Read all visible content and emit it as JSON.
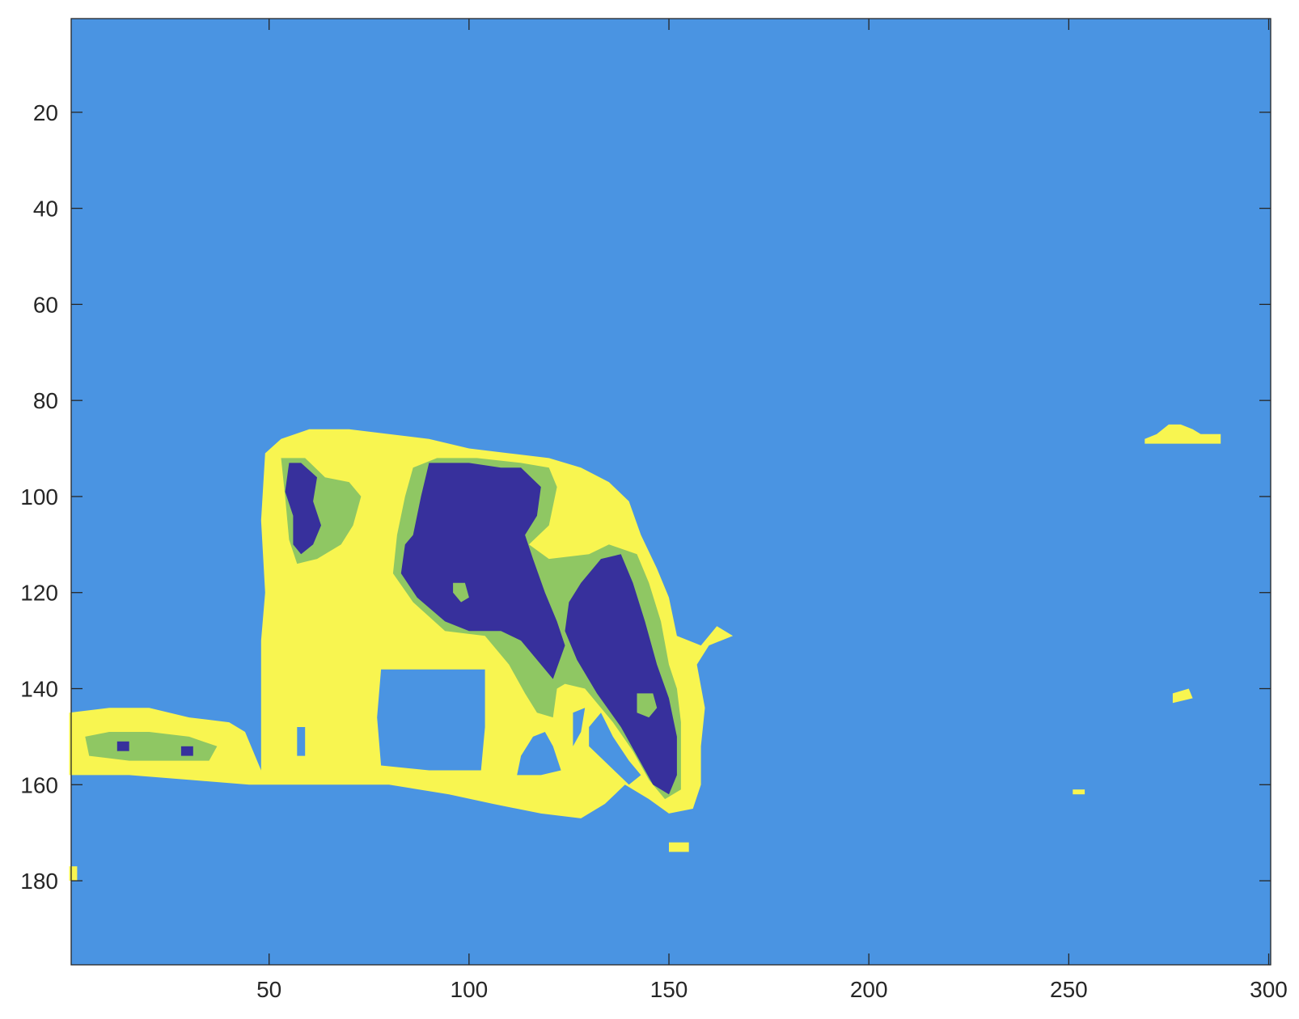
{
  "chart_data": {
    "type": "heatmap",
    "title": "",
    "xlabel": "",
    "ylabel": "",
    "xlim": [
      0.5,
      300.5
    ],
    "ylim": [
      0.5,
      197.5
    ],
    "y_direction": "reversed",
    "x_ticks": [
      50,
      100,
      150,
      200,
      250,
      300
    ],
    "x_tick_labels": [
      "50",
      "100",
      "150",
      "200",
      "250",
      "300"
    ],
    "y_ticks": [
      20,
      40,
      60,
      80,
      100,
      120,
      140,
      160,
      180
    ],
    "y_tick_labels": [
      "20",
      "40",
      "60",
      "80",
      "100",
      "120",
      "140",
      "160",
      "180"
    ],
    "grid": false,
    "legend": "none",
    "colors": {
      "background_class": "#4a94e2",
      "outer_class": "#f8f550",
      "middle_class": "#8fc763",
      "inner_class": "#37309c"
    },
    "regions": [
      {
        "class": "outer_class",
        "polygon": [
          [
            48,
            157
          ],
          [
            48,
            130
          ],
          [
            49,
            120
          ],
          [
            48,
            105
          ],
          [
            49,
            91
          ],
          [
            53,
            88
          ],
          [
            60,
            86
          ],
          [
            70,
            86
          ],
          [
            80,
            87
          ],
          [
            90,
            88
          ],
          [
            100,
            90
          ],
          [
            110,
            91
          ],
          [
            120,
            92
          ],
          [
            128,
            94
          ],
          [
            135,
            97
          ],
          [
            140,
            101
          ],
          [
            143,
            108
          ],
          [
            147,
            115
          ],
          [
            150,
            121
          ],
          [
            152,
            129
          ],
          [
            158,
            131
          ],
          [
            162,
            127
          ],
          [
            166,
            129
          ],
          [
            160,
            131
          ],
          [
            157,
            135
          ],
          [
            159,
            144
          ],
          [
            158,
            152
          ],
          [
            158,
            160
          ],
          [
            156,
            165
          ],
          [
            150,
            166
          ],
          [
            145,
            163
          ],
          [
            139,
            160
          ],
          [
            134,
            164
          ],
          [
            128,
            167
          ],
          [
            118,
            166
          ],
          [
            106,
            164
          ],
          [
            95,
            162
          ],
          [
            80,
            160
          ],
          [
            60,
            160
          ],
          [
            45,
            160
          ],
          [
            30,
            159
          ],
          [
            15,
            158
          ],
          [
            0,
            158
          ],
          [
            0,
            145
          ],
          [
            10,
            144
          ],
          [
            20,
            144
          ],
          [
            30,
            146
          ],
          [
            40,
            147
          ],
          [
            44,
            149
          ]
        ]
      },
      {
        "class": "outer_class",
        "polygon": [
          [
            269,
            88
          ],
          [
            272,
            87
          ],
          [
            275,
            85
          ],
          [
            278,
            85
          ],
          [
            281,
            86
          ],
          [
            283,
            87
          ],
          [
            288,
            87
          ],
          [
            288,
            89
          ],
          [
            283,
            89
          ],
          [
            279,
            89
          ],
          [
            272,
            89
          ],
          [
            269,
            89
          ]
        ]
      },
      {
        "class": "outer_class",
        "polygon": [
          [
            150,
            172
          ],
          [
            155,
            172
          ],
          [
            155,
            174
          ],
          [
            150,
            174
          ]
        ]
      },
      {
        "class": "outer_class",
        "polygon": [
          [
            251,
            161
          ],
          [
            254,
            161
          ],
          [
            254,
            162
          ],
          [
            251,
            162
          ]
        ]
      },
      {
        "class": "outer_class",
        "polygon": [
          [
            276,
            141
          ],
          [
            280,
            140
          ],
          [
            281,
            142
          ],
          [
            276,
            143
          ]
        ]
      },
      {
        "class": "outer_class",
        "polygon": [
          [
            0,
            177
          ],
          [
            2,
            177
          ],
          [
            2,
            180
          ],
          [
            0,
            180
          ]
        ]
      },
      {
        "class": "background_class",
        "polygon": [
          [
            78,
            136
          ],
          [
            90,
            136
          ],
          [
            104,
            136
          ],
          [
            104,
            148
          ],
          [
            103,
            157
          ],
          [
            90,
            157
          ],
          [
            78,
            156
          ],
          [
            77,
            146
          ]
        ]
      },
      {
        "class": "background_class",
        "polygon": [
          [
            116,
            150
          ],
          [
            119,
            149
          ],
          [
            121,
            152
          ],
          [
            123,
            157
          ],
          [
            118,
            158
          ],
          [
            112,
            158
          ],
          [
            113,
            154
          ]
        ]
      },
      {
        "class": "background_class",
        "polygon": [
          [
            133,
            145
          ],
          [
            136,
            150
          ],
          [
            140,
            155
          ],
          [
            143,
            158
          ],
          [
            140,
            160
          ],
          [
            135,
            156
          ],
          [
            130,
            152
          ],
          [
            130,
            148
          ]
        ]
      },
      {
        "class": "background_class",
        "polygon": [
          [
            57,
            148
          ],
          [
            59,
            148
          ],
          [
            59,
            154
          ],
          [
            57,
            154
          ]
        ]
      },
      {
        "class": "background_class",
        "polygon": [
          [
            126,
            145
          ],
          [
            129,
            144
          ],
          [
            128,
            149
          ],
          [
            126,
            152
          ]
        ]
      },
      {
        "class": "middle_class",
        "polygon": [
          [
            53,
            92
          ],
          [
            59,
            92
          ],
          [
            64,
            96
          ],
          [
            70,
            97
          ],
          [
            73,
            100
          ],
          [
            71,
            106
          ],
          [
            68,
            110
          ],
          [
            62,
            113
          ],
          [
            57,
            114
          ],
          [
            55,
            109
          ],
          [
            54,
            100
          ]
        ]
      },
      {
        "class": "middle_class",
        "polygon": [
          [
            86,
            94
          ],
          [
            92,
            92
          ],
          [
            102,
            92
          ],
          [
            113,
            93
          ],
          [
            120,
            94
          ],
          [
            122,
            98
          ],
          [
            120,
            106
          ],
          [
            115,
            110
          ],
          [
            120,
            113
          ],
          [
            130,
            112
          ],
          [
            135,
            110
          ],
          [
            142,
            112
          ],
          [
            145,
            118
          ],
          [
            148,
            126
          ],
          [
            150,
            135
          ],
          [
            152,
            140
          ],
          [
            153,
            147
          ],
          [
            153,
            154
          ],
          [
            153,
            161
          ],
          [
            149,
            163
          ],
          [
            145,
            159
          ],
          [
            141,
            153
          ],
          [
            136,
            147
          ],
          [
            129,
            140
          ],
          [
            124,
            139
          ],
          [
            122,
            140
          ],
          [
            121,
            146
          ],
          [
            117,
            145
          ],
          [
            114,
            141
          ],
          [
            110,
            135
          ],
          [
            104,
            129
          ],
          [
            94,
            128
          ],
          [
            86,
            122
          ],
          [
            81,
            116
          ],
          [
            82,
            108
          ],
          [
            84,
            100
          ]
        ]
      },
      {
        "class": "middle_class",
        "polygon": [
          [
            4,
            150
          ],
          [
            10,
            149
          ],
          [
            20,
            149
          ],
          [
            30,
            150
          ],
          [
            37,
            152
          ],
          [
            35,
            155
          ],
          [
            25,
            155
          ],
          [
            15,
            155
          ],
          [
            5,
            154
          ]
        ]
      },
      {
        "class": "inner_class",
        "polygon": [
          [
            55,
            93
          ],
          [
            58,
            93
          ],
          [
            62,
            96
          ],
          [
            61,
            101
          ],
          [
            63,
            106
          ],
          [
            61,
            110
          ],
          [
            58,
            112
          ],
          [
            56,
            110
          ],
          [
            56,
            104
          ],
          [
            54,
            99
          ]
        ]
      },
      {
        "class": "inner_class",
        "polygon": [
          [
            90,
            93
          ],
          [
            100,
            93
          ],
          [
            108,
            94
          ],
          [
            113,
            94
          ],
          [
            118,
            98
          ],
          [
            117,
            104
          ],
          [
            114,
            108
          ],
          [
            116,
            113
          ],
          [
            119,
            120
          ],
          [
            122,
            126
          ],
          [
            124,
            131
          ],
          [
            121,
            138
          ],
          [
            118,
            135
          ],
          [
            113,
            130
          ],
          [
            108,
            128
          ],
          [
            100,
            128
          ],
          [
            94,
            126
          ],
          [
            87,
            121
          ],
          [
            83,
            116
          ],
          [
            84,
            110
          ],
          [
            86,
            108
          ],
          [
            88,
            100
          ]
        ]
      },
      {
        "class": "inner_class",
        "polygon": [
          [
            133,
            113
          ],
          [
            138,
            112
          ],
          [
            141,
            118
          ],
          [
            144,
            126
          ],
          [
            147,
            135
          ],
          [
            150,
            142
          ],
          [
            152,
            150
          ],
          [
            152,
            158
          ],
          [
            150,
            162
          ],
          [
            146,
            160
          ],
          [
            142,
            154
          ],
          [
            138,
            148
          ],
          [
            132,
            141
          ],
          [
            127,
            134
          ],
          [
            124,
            128
          ],
          [
            125,
            122
          ],
          [
            128,
            118
          ]
        ]
      },
      {
        "class": "inner_class",
        "polygon": [
          [
            12,
            151
          ],
          [
            15,
            151
          ],
          [
            15,
            153
          ],
          [
            12,
            153
          ]
        ]
      },
      {
        "class": "inner_class",
        "polygon": [
          [
            28,
            152
          ],
          [
            31,
            152
          ],
          [
            31,
            154
          ],
          [
            28,
            154
          ]
        ]
      },
      {
        "class": "middle_class",
        "polygon": [
          [
            96,
            118
          ],
          [
            99,
            118
          ],
          [
            100,
            121
          ],
          [
            98,
            122
          ],
          [
            96,
            120
          ]
        ]
      },
      {
        "class": "middle_class",
        "polygon": [
          [
            142,
            141
          ],
          [
            146,
            141
          ],
          [
            147,
            144
          ],
          [
            145,
            146
          ],
          [
            142,
            145
          ]
        ]
      }
    ]
  }
}
